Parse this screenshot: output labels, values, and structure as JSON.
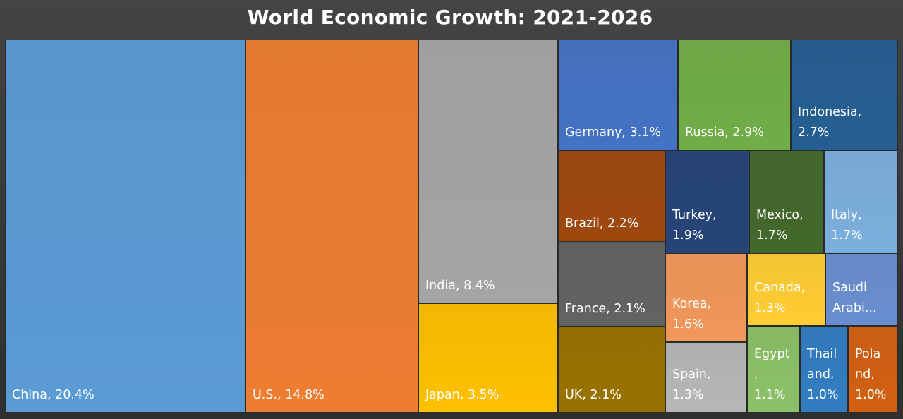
{
  "chart_data": {
    "type": "treemap",
    "title": "World Economic Growth: 2021-2026",
    "unit": "%",
    "items": [
      {
        "name": "China",
        "value": 20.4,
        "label": "China, 20.4%",
        "color": "#5b9bd5"
      },
      {
        "name": "U.S.",
        "value": 14.8,
        "label": "U.S., 14.8%",
        "color": "#ed7d31"
      },
      {
        "name": "India",
        "value": 8.4,
        "label": "India, 8.4%",
        "color": "#a5a5a5"
      },
      {
        "name": "Japan",
        "value": 3.5,
        "label": "Japan, 3.5%",
        "color": "#ffc000"
      },
      {
        "name": "Germany",
        "value": 3.1,
        "label": "Germany, 3.1%",
        "color": "#4472c4"
      },
      {
        "name": "Russia",
        "value": 2.9,
        "label": "Russia, 2.9%",
        "color": "#70ad47"
      },
      {
        "name": "Indonesia",
        "value": 2.7,
        "label": "Indonesia,\n2.7%",
        "color": "#255e91"
      },
      {
        "name": "Brazil",
        "value": 2.2,
        "label": "Brazil, 2.2%",
        "color": "#9e480e"
      },
      {
        "name": "France",
        "value": 2.1,
        "label": "France, 2.1%",
        "color": "#636363"
      },
      {
        "name": "UK",
        "value": 2.1,
        "label": "UK, 2.1%",
        "color": "#997300"
      },
      {
        "name": "Turkey",
        "value": 1.9,
        "label": "Turkey,\n1.9%",
        "color": "#264478"
      },
      {
        "name": "Mexico",
        "value": 1.7,
        "label": "Mexico,\n1.7%",
        "color": "#43682b"
      },
      {
        "name": "Italy",
        "value": 1.7,
        "label": "Italy,\n1.7%",
        "color": "#7cafdd"
      },
      {
        "name": "Korea",
        "value": 1.6,
        "label": "Korea,\n1.6%",
        "color": "#f1975a"
      },
      {
        "name": "Canada",
        "value": 1.3,
        "label": "Canada,\n1.3%",
        "color": "#ffcd33"
      },
      {
        "name": "Saudi Arabia",
        "value": null,
        "label": "Saudi\nArabi...",
        "color": "#698ed0"
      },
      {
        "name": "Spain",
        "value": 1.3,
        "label": "Spain,\n1.3%",
        "color": "#b7b7b7"
      },
      {
        "name": "Egypt",
        "value": 1.1,
        "label": "Egypt\n,\n1.1%",
        "color": "#8cc168"
      },
      {
        "name": "Thailand",
        "value": 1.0,
        "label": "Thail\nand,\n1.0%",
        "color": "#327dc2"
      },
      {
        "name": "Poland",
        "value": 1.0,
        "label": "Pola\nnd,\n1.0%",
        "color": "#d26012"
      }
    ]
  }
}
